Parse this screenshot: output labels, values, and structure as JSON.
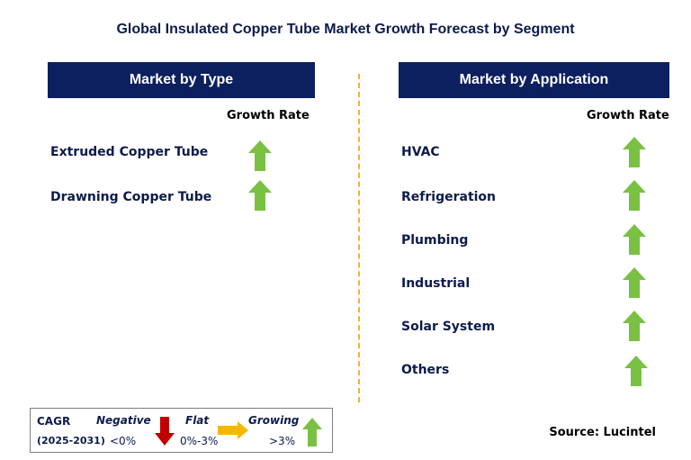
{
  "title": "Global Insulated Copper Tube Market Growth Forecast by Segment",
  "left_panel": {
    "header": "Market by Type",
    "growth_rate_label": "Growth Rate",
    "items": [
      {
        "label": "Extruded Copper Tube",
        "trend": "growing"
      },
      {
        "label": "Drawning Copper Tube",
        "trend": "growing"
      }
    ]
  },
  "right_panel": {
    "header": "Market by Application",
    "growth_rate_label": "Growth Rate",
    "items": [
      {
        "label": "HVAC",
        "trend": "growing"
      },
      {
        "label": "Refrigeration",
        "trend": "growing"
      },
      {
        "label": "Plumbing",
        "trend": "growing"
      },
      {
        "label": "Industrial",
        "trend": "growing"
      },
      {
        "label": "Solar System",
        "trend": "growing"
      },
      {
        "label": "Others",
        "trend": "growing"
      }
    ]
  },
  "legend": {
    "cagr_label": "CAGR",
    "period": "(2025-2031)",
    "negative": {
      "label": "Negative",
      "range": "<0%",
      "icon": "down-arrow-icon",
      "color": "#c00000"
    },
    "flat": {
      "label": "Flat",
      "range": "0%-3%",
      "icon": "right-arrow-icon",
      "color": "#f5b800"
    },
    "growing": {
      "label": "Growing",
      "range": ">3%",
      "icon": "up-arrow-icon",
      "color": "#7ac143"
    }
  },
  "source": "Source: Lucintel",
  "colors": {
    "header_bg": "#0c1f5e",
    "divider": "#f2b233",
    "growing_arrow": "#7ac143"
  }
}
